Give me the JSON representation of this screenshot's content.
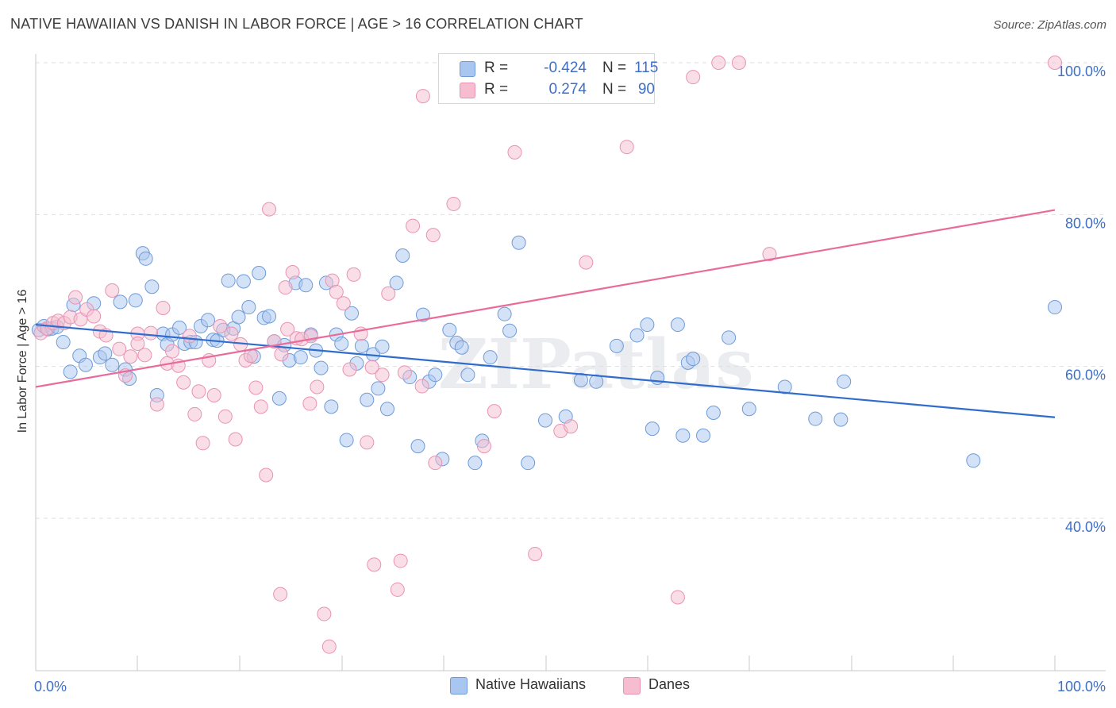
{
  "title": "NATIVE HAWAIIAN VS DANISH IN LABOR FORCE | AGE > 16 CORRELATION CHART",
  "source": "Source: ZipAtlas.com",
  "watermark": "ZIPatlas",
  "legend_top": {
    "rows": [
      {
        "r_label": "R =",
        "r_value": "-0.424",
        "n_label": "N =",
        "n_value": "115"
      },
      {
        "r_label": "R =",
        "r_value": "0.274",
        "n_label": "N =",
        "n_value": "90"
      }
    ]
  },
  "legend_bottom": {
    "items": [
      {
        "label": "Native Hawaiians"
      },
      {
        "label": "Danes"
      }
    ]
  },
  "colors": {
    "blue_fill": "#a9c6f0",
    "blue_stroke": "#6f9bd9",
    "blue_line": "#2f6ccc",
    "pink_fill": "#f6bdd0",
    "pink_stroke": "#e893b2",
    "pink_line": "#e86b9a",
    "tick_label": "#3e6fc6",
    "grid": "#dedede"
  },
  "chart_data": {
    "type": "scatter",
    "title": "NATIVE HAWAIIAN VS DANISH IN LABOR FORCE | AGE > 16 CORRELATION CHART",
    "xlabel": "",
    "ylabel": "In Labor Force | Age > 16",
    "x_ticks": [
      "0.0%",
      "100.0%"
    ],
    "y_ticks": [
      "40.0%",
      "60.0%",
      "80.0%",
      "100.0%"
    ],
    "xlim": [
      0,
      100
    ],
    "ylim": [
      20,
      100
    ],
    "grid": "horizontal dashed",
    "legend_position": "top-center",
    "series": [
      {
        "name": "Native Hawaiians",
        "r": -0.424,
        "n": 115,
        "trend": [
          [
            0,
            65.5
          ],
          [
            100,
            53.3
          ]
        ],
        "points": [
          [
            0.3,
            64.8
          ],
          [
            0.8,
            65.3
          ],
          [
            1.2,
            64.9
          ],
          [
            1.6,
            65.0
          ],
          [
            2.1,
            65.2
          ],
          [
            2.7,
            63.2
          ],
          [
            3.4,
            59.3
          ],
          [
            3.7,
            68.1
          ],
          [
            4.3,
            61.4
          ],
          [
            4.9,
            60.2
          ],
          [
            5.7,
            68.3
          ],
          [
            6.3,
            61.2
          ],
          [
            6.8,
            61.7
          ],
          [
            7.5,
            60.2
          ],
          [
            8.3,
            68.5
          ],
          [
            8.8,
            59.6
          ],
          [
            9.2,
            58.4
          ],
          [
            9.8,
            68.7
          ],
          [
            10.5,
            74.9
          ],
          [
            10.8,
            74.2
          ],
          [
            11.4,
            70.5
          ],
          [
            11.9,
            56.2
          ],
          [
            12.5,
            64.3
          ],
          [
            12.9,
            62.9
          ],
          [
            13.4,
            64.2
          ],
          [
            14.1,
            65.1
          ],
          [
            14.6,
            63.0
          ],
          [
            15.2,
            63.2
          ],
          [
            15.7,
            63.2
          ],
          [
            16.2,
            65.3
          ],
          [
            16.9,
            66.1
          ],
          [
            17.4,
            63.5
          ],
          [
            17.8,
            63.4
          ],
          [
            18.4,
            64.8
          ],
          [
            18.9,
            71.3
          ],
          [
            19.4,
            65.0
          ],
          [
            19.9,
            66.5
          ],
          [
            20.4,
            71.2
          ],
          [
            20.9,
            67.8
          ],
          [
            21.4,
            61.3
          ],
          [
            21.9,
            72.3
          ],
          [
            22.4,
            66.4
          ],
          [
            22.9,
            66.6
          ],
          [
            23.4,
            63.3
          ],
          [
            23.9,
            55.8
          ],
          [
            24.4,
            62.8
          ],
          [
            24.9,
            60.8
          ],
          [
            25.5,
            71.0
          ],
          [
            26.0,
            61.2
          ],
          [
            26.5,
            70.7
          ],
          [
            27.0,
            64.2
          ],
          [
            27.5,
            62.1
          ],
          [
            28.0,
            59.8
          ],
          [
            28.5,
            71.0
          ],
          [
            29.0,
            54.7
          ],
          [
            29.5,
            64.2
          ],
          [
            30.0,
            63.0
          ],
          [
            30.5,
            50.3
          ],
          [
            31.0,
            67.0
          ],
          [
            31.5,
            60.4
          ],
          [
            32.0,
            62.7
          ],
          [
            32.5,
            55.6
          ],
          [
            33.1,
            61.6
          ],
          [
            33.6,
            57.1
          ],
          [
            34.0,
            62.6
          ],
          [
            34.5,
            54.4
          ],
          [
            35.4,
            71.0
          ],
          [
            36.0,
            74.6
          ],
          [
            36.7,
            58.6
          ],
          [
            37.5,
            49.5
          ],
          [
            38.0,
            66.8
          ],
          [
            38.6,
            58.0
          ],
          [
            39.2,
            58.9
          ],
          [
            39.9,
            47.8
          ],
          [
            40.6,
            64.8
          ],
          [
            41.3,
            63.1
          ],
          [
            41.8,
            62.5
          ],
          [
            42.4,
            58.9
          ],
          [
            43.1,
            47.3
          ],
          [
            43.8,
            50.2
          ],
          [
            44.6,
            61.2
          ],
          [
            46.0,
            66.9
          ],
          [
            46.5,
            64.7
          ],
          [
            47.4,
            76.3
          ],
          [
            48.3,
            47.3
          ],
          [
            50.0,
            52.9
          ],
          [
            52.0,
            53.4
          ],
          [
            53.5,
            58.2
          ],
          [
            55.0,
            58.0
          ],
          [
            57.0,
            62.7
          ],
          [
            59.0,
            64.1
          ],
          [
            60.0,
            65.5
          ],
          [
            60.5,
            51.8
          ],
          [
            61.0,
            58.5
          ],
          [
            63.0,
            65.5
          ],
          [
            63.5,
            50.9
          ],
          [
            64.0,
            60.5
          ],
          [
            64.5,
            61.0
          ],
          [
            65.5,
            50.9
          ],
          [
            66.5,
            53.9
          ],
          [
            68.0,
            63.8
          ],
          [
            70.0,
            54.4
          ],
          [
            73.5,
            57.3
          ],
          [
            76.5,
            53.1
          ],
          [
            79.0,
            53.0
          ],
          [
            79.3,
            58.0
          ],
          [
            92.0,
            47.6
          ],
          [
            100.0,
            67.8
          ]
        ]
      },
      {
        "name": "Danes",
        "r": 0.274,
        "n": 90,
        "trend": [
          [
            0,
            57.3
          ],
          [
            100,
            80.6
          ]
        ],
        "points": [
          [
            0.5,
            64.4
          ],
          [
            1.1,
            65.0
          ],
          [
            1.7,
            65.7
          ],
          [
            2.2,
            66.0
          ],
          [
            2.8,
            65.7
          ],
          [
            3.4,
            66.5
          ],
          [
            3.9,
            69.1
          ],
          [
            4.4,
            66.2
          ],
          [
            5.0,
            67.5
          ],
          [
            5.7,
            66.6
          ],
          [
            6.3,
            64.6
          ],
          [
            6.9,
            64.1
          ],
          [
            7.5,
            70.0
          ],
          [
            8.2,
            62.3
          ],
          [
            8.8,
            58.8
          ],
          [
            9.3,
            61.3
          ],
          [
            10.0,
            64.3
          ],
          [
            10.7,
            61.5
          ],
          [
            11.3,
            64.4
          ],
          [
            11.9,
            55.0
          ],
          [
            12.5,
            67.7
          ],
          [
            12.9,
            60.4
          ],
          [
            13.4,
            62.0
          ],
          [
            14.0,
            60.1
          ],
          [
            14.5,
            57.9
          ],
          [
            15.1,
            64.0
          ],
          [
            15.6,
            53.7
          ],
          [
            16.0,
            56.7
          ],
          [
            16.4,
            49.9
          ],
          [
            17.0,
            60.8
          ],
          [
            17.5,
            56.2
          ],
          [
            18.1,
            65.3
          ],
          [
            18.6,
            53.4
          ],
          [
            19.2,
            64.3
          ],
          [
            19.6,
            50.4
          ],
          [
            20.1,
            62.9
          ],
          [
            20.6,
            60.8
          ],
          [
            21.1,
            61.4
          ],
          [
            21.6,
            57.2
          ],
          [
            22.1,
            54.7
          ],
          [
            22.6,
            45.7
          ],
          [
            22.9,
            80.7
          ],
          [
            23.4,
            63.3
          ],
          [
            24.1,
            61.6
          ],
          [
            24.5,
            70.4
          ],
          [
            25.2,
            72.4
          ],
          [
            25.6,
            63.7
          ],
          [
            26.1,
            63.6
          ],
          [
            26.9,
            55.1
          ],
          [
            27.6,
            57.3
          ],
          [
            28.3,
            27.4
          ],
          [
            28.8,
            23.1
          ],
          [
            29.1,
            71.3
          ],
          [
            29.5,
            69.8
          ],
          [
            30.2,
            68.3
          ],
          [
            30.8,
            59.6
          ],
          [
            31.2,
            72.1
          ],
          [
            31.9,
            64.3
          ],
          [
            32.5,
            50.0
          ],
          [
            33.2,
            33.9
          ],
          [
            34.0,
            58.9
          ],
          [
            34.6,
            69.6
          ],
          [
            35.5,
            30.6
          ],
          [
            35.8,
            34.4
          ],
          [
            36.2,
            59.2
          ],
          [
            37.0,
            78.5
          ],
          [
            37.9,
            57.4
          ],
          [
            38.0,
            95.6
          ],
          [
            39.0,
            77.3
          ],
          [
            39.2,
            47.3
          ],
          [
            41.0,
            81.4
          ],
          [
            44.0,
            49.5
          ],
          [
            45.0,
            54.1
          ],
          [
            47.0,
            88.2
          ],
          [
            49.0,
            35.3
          ],
          [
            51.5,
            51.5
          ],
          [
            52.5,
            52.1
          ],
          [
            54.0,
            73.7
          ],
          [
            58.0,
            88.9
          ],
          [
            63.0,
            29.6
          ],
          [
            64.5,
            98.1
          ],
          [
            67.0,
            100.0
          ],
          [
            69.0,
            100.0
          ],
          [
            72.0,
            74.8
          ],
          [
            100.0,
            100.0
          ],
          [
            10.0,
            63.0
          ],
          [
            24.7,
            64.9
          ],
          [
            27.0,
            64.0
          ],
          [
            33.0,
            59.9
          ],
          [
            24.0,
            30.0
          ]
        ]
      }
    ]
  }
}
